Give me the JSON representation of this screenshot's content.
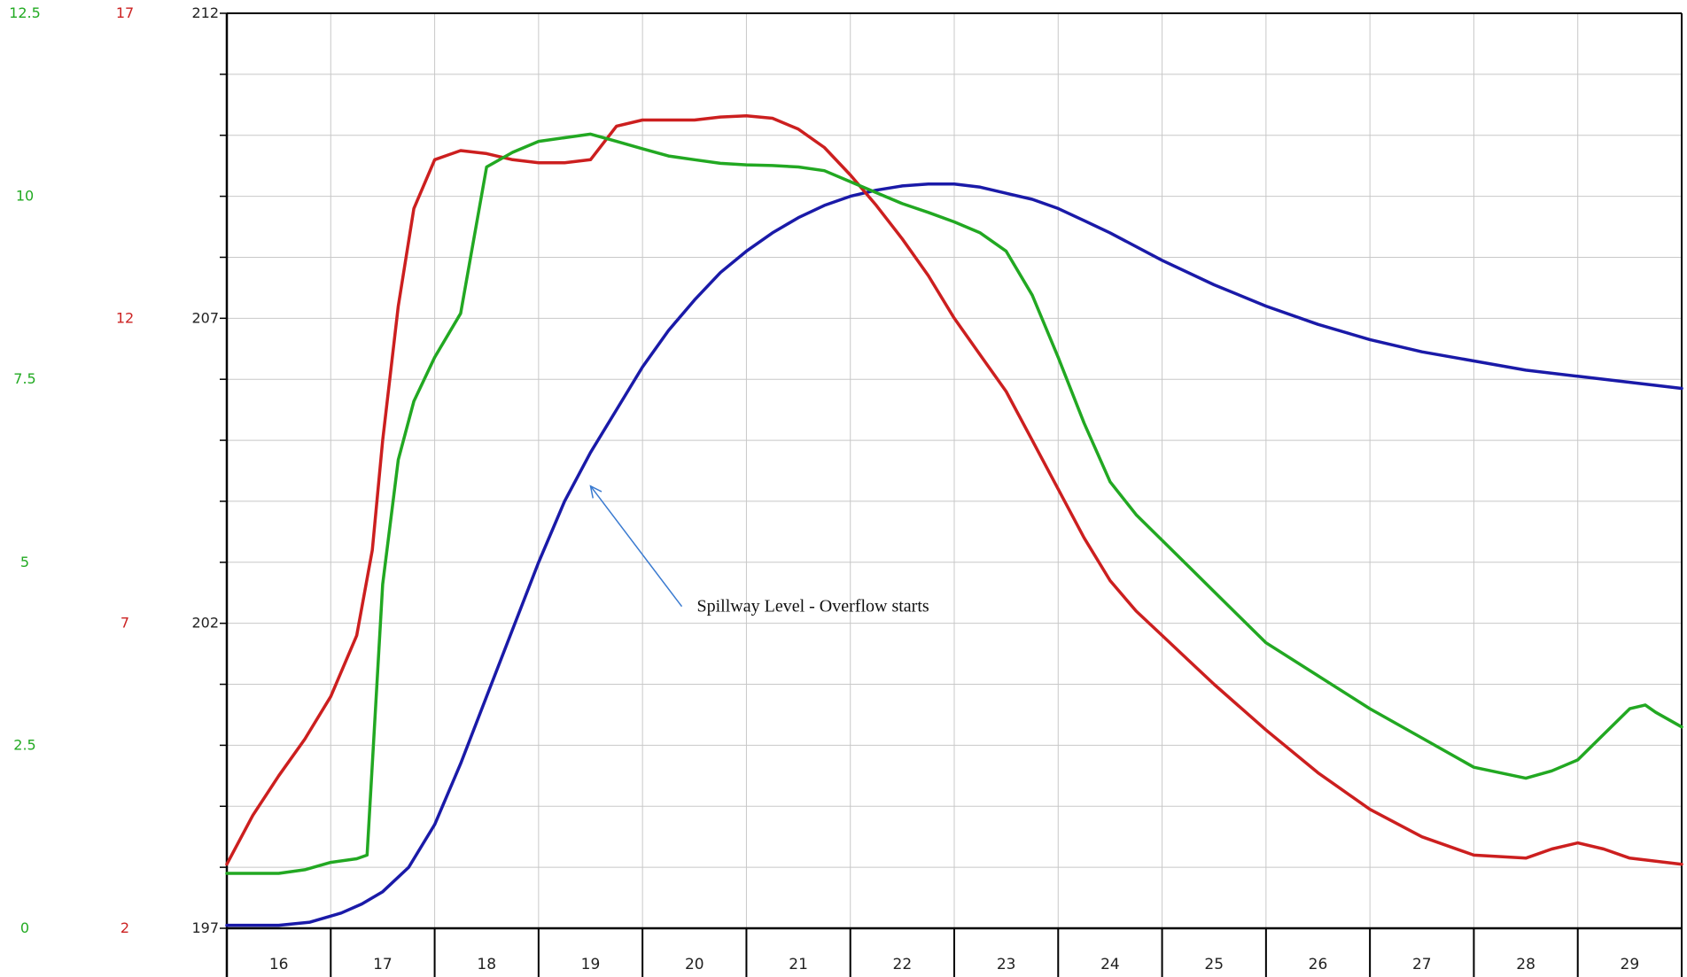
{
  "chart_data": {
    "type": "line",
    "title": "",
    "xlabel": "",
    "ylabel": "",
    "grid": true,
    "x_ticks": [
      "16",
      "17",
      "18",
      "19",
      "20",
      "21",
      "22",
      "23",
      "24",
      "25",
      "26",
      "27",
      "28",
      "29"
    ],
    "xlim": [
      15.5,
      29.5
    ],
    "axes": {
      "green": {
        "ticks": [
          "12.5",
          "10",
          "7.5",
          "5",
          "2.5",
          "0"
        ],
        "ylim": [
          0,
          12.5
        ],
        "color": "#22aa22"
      },
      "red": {
        "ticks": [
          "17",
          "12",
          "7",
          "2"
        ],
        "ylim": [
          2,
          17
        ],
        "color": "#cc2222"
      },
      "black": {
        "ticks": [
          "212",
          "207",
          "202",
          "197"
        ],
        "ylim": [
          197,
          212
        ],
        "color": "#222222"
      }
    },
    "series": [
      {
        "axis": "black",
        "color": "#1a1aa8",
        "points": [
          [
            15.5,
            197.05
          ],
          [
            16.0,
            197.05
          ],
          [
            16.3,
            197.1
          ],
          [
            16.6,
            197.25
          ],
          [
            16.8,
            197.4
          ],
          [
            17.0,
            197.6
          ],
          [
            17.25,
            198.0
          ],
          [
            17.5,
            198.7
          ],
          [
            17.75,
            199.7
          ],
          [
            18.0,
            200.8
          ],
          [
            18.25,
            201.9
          ],
          [
            18.5,
            203.0
          ],
          [
            18.75,
            204.0
          ],
          [
            19.0,
            204.8
          ],
          [
            19.25,
            205.5
          ],
          [
            19.5,
            206.2
          ],
          [
            19.75,
            206.8
          ],
          [
            20.0,
            207.3
          ],
          [
            20.25,
            207.75
          ],
          [
            20.5,
            208.1
          ],
          [
            20.75,
            208.4
          ],
          [
            21.0,
            208.65
          ],
          [
            21.25,
            208.85
          ],
          [
            21.5,
            209.0
          ],
          [
            21.75,
            209.1
          ],
          [
            22.0,
            209.17
          ],
          [
            22.25,
            209.2
          ],
          [
            22.5,
            209.2
          ],
          [
            22.75,
            209.15
          ],
          [
            23.0,
            209.05
          ],
          [
            23.25,
            208.95
          ],
          [
            23.5,
            208.8
          ],
          [
            23.75,
            208.6
          ],
          [
            24.0,
            208.4
          ],
          [
            24.5,
            207.95
          ],
          [
            25.0,
            207.55
          ],
          [
            25.5,
            207.2
          ],
          [
            26.0,
            206.9
          ],
          [
            26.5,
            206.65
          ],
          [
            27.0,
            206.45
          ],
          [
            27.5,
            206.3
          ],
          [
            28.0,
            206.15
          ],
          [
            28.5,
            206.05
          ],
          [
            29.0,
            205.95
          ],
          [
            29.5,
            205.85
          ]
        ]
      },
      {
        "axis": "red",
        "color": "#cc1f1f",
        "points": [
          [
            15.5,
            3.05
          ],
          [
            15.75,
            3.85
          ],
          [
            16.0,
            4.5
          ],
          [
            16.25,
            5.1
          ],
          [
            16.5,
            5.8
          ],
          [
            16.75,
            6.8
          ],
          [
            16.9,
            8.2
          ],
          [
            17.0,
            10.0
          ],
          [
            17.15,
            12.2
          ],
          [
            17.3,
            13.8
          ],
          [
            17.5,
            14.6
          ],
          [
            17.75,
            14.75
          ],
          [
            18.0,
            14.7
          ],
          [
            18.25,
            14.6
          ],
          [
            18.5,
            14.55
          ],
          [
            18.75,
            14.55
          ],
          [
            19.0,
            14.6
          ],
          [
            19.25,
            15.15
          ],
          [
            19.5,
            15.25
          ],
          [
            19.75,
            15.25
          ],
          [
            20.0,
            15.25
          ],
          [
            20.25,
            15.3
          ],
          [
            20.5,
            15.32
          ],
          [
            20.75,
            15.28
          ],
          [
            21.0,
            15.1
          ],
          [
            21.25,
            14.8
          ],
          [
            21.5,
            14.35
          ],
          [
            21.75,
            13.85
          ],
          [
            22.0,
            13.3
          ],
          [
            22.25,
            12.7
          ],
          [
            22.5,
            12.0
          ],
          [
            22.75,
            11.4
          ],
          [
            23.0,
            10.8
          ],
          [
            23.25,
            10.0
          ],
          [
            23.5,
            9.2
          ],
          [
            23.75,
            8.4
          ],
          [
            24.0,
            7.7
          ],
          [
            24.25,
            7.2
          ],
          [
            24.5,
            6.8
          ],
          [
            24.75,
            6.4
          ],
          [
            25.0,
            6.0
          ],
          [
            25.5,
            5.25
          ],
          [
            26.0,
            4.55
          ],
          [
            26.5,
            3.95
          ],
          [
            27.0,
            3.5
          ],
          [
            27.5,
            3.2
          ],
          [
            28.0,
            3.15
          ],
          [
            28.25,
            3.3
          ],
          [
            28.5,
            3.4
          ],
          [
            28.75,
            3.3
          ],
          [
            29.0,
            3.15
          ],
          [
            29.25,
            3.1
          ],
          [
            29.5,
            3.05
          ]
        ]
      },
      {
        "axis": "green",
        "color": "#22a822",
        "points": [
          [
            15.5,
            0.75
          ],
          [
            16.0,
            0.75
          ],
          [
            16.25,
            0.8
          ],
          [
            16.5,
            0.9
          ],
          [
            16.75,
            0.95
          ],
          [
            16.85,
            1.0
          ],
          [
            17.0,
            4.7
          ],
          [
            17.15,
            6.4
          ],
          [
            17.3,
            7.2
          ],
          [
            17.5,
            7.8
          ],
          [
            17.75,
            8.4
          ],
          [
            17.85,
            9.2
          ],
          [
            18.0,
            10.4
          ],
          [
            18.25,
            10.6
          ],
          [
            18.5,
            10.75
          ],
          [
            18.75,
            10.8
          ],
          [
            19.0,
            10.85
          ],
          [
            19.25,
            10.75
          ],
          [
            19.5,
            10.65
          ],
          [
            19.75,
            10.55
          ],
          [
            20.0,
            10.5
          ],
          [
            20.25,
            10.45
          ],
          [
            20.5,
            10.43
          ],
          [
            20.75,
            10.42
          ],
          [
            21.0,
            10.4
          ],
          [
            21.25,
            10.35
          ],
          [
            21.5,
            10.2
          ],
          [
            21.75,
            10.05
          ],
          [
            22.0,
            9.9
          ],
          [
            22.25,
            9.78
          ],
          [
            22.5,
            9.65
          ],
          [
            22.75,
            9.5
          ],
          [
            23.0,
            9.25
          ],
          [
            23.25,
            8.65
          ],
          [
            23.5,
            7.8
          ],
          [
            23.75,
            6.9
          ],
          [
            24.0,
            6.1
          ],
          [
            24.25,
            5.65
          ],
          [
            24.5,
            5.3
          ],
          [
            24.75,
            4.95
          ],
          [
            25.0,
            4.6
          ],
          [
            25.5,
            3.9
          ],
          [
            26.0,
            3.45
          ],
          [
            26.5,
            3.0
          ],
          [
            27.0,
            2.6
          ],
          [
            27.5,
            2.2
          ],
          [
            28.0,
            2.05
          ],
          [
            28.25,
            2.15
          ],
          [
            28.5,
            2.3
          ],
          [
            28.75,
            2.65
          ],
          [
            29.0,
            3.0
          ],
          [
            29.15,
            3.05
          ],
          [
            29.25,
            2.95
          ],
          [
            29.5,
            2.75
          ]
        ]
      }
    ],
    "annotations": [
      {
        "text": "Spillway Level - Overflow starts",
        "x": 19.0,
        "y": 204.25,
        "axis": "black",
        "color": "#3a7ad0"
      }
    ]
  }
}
